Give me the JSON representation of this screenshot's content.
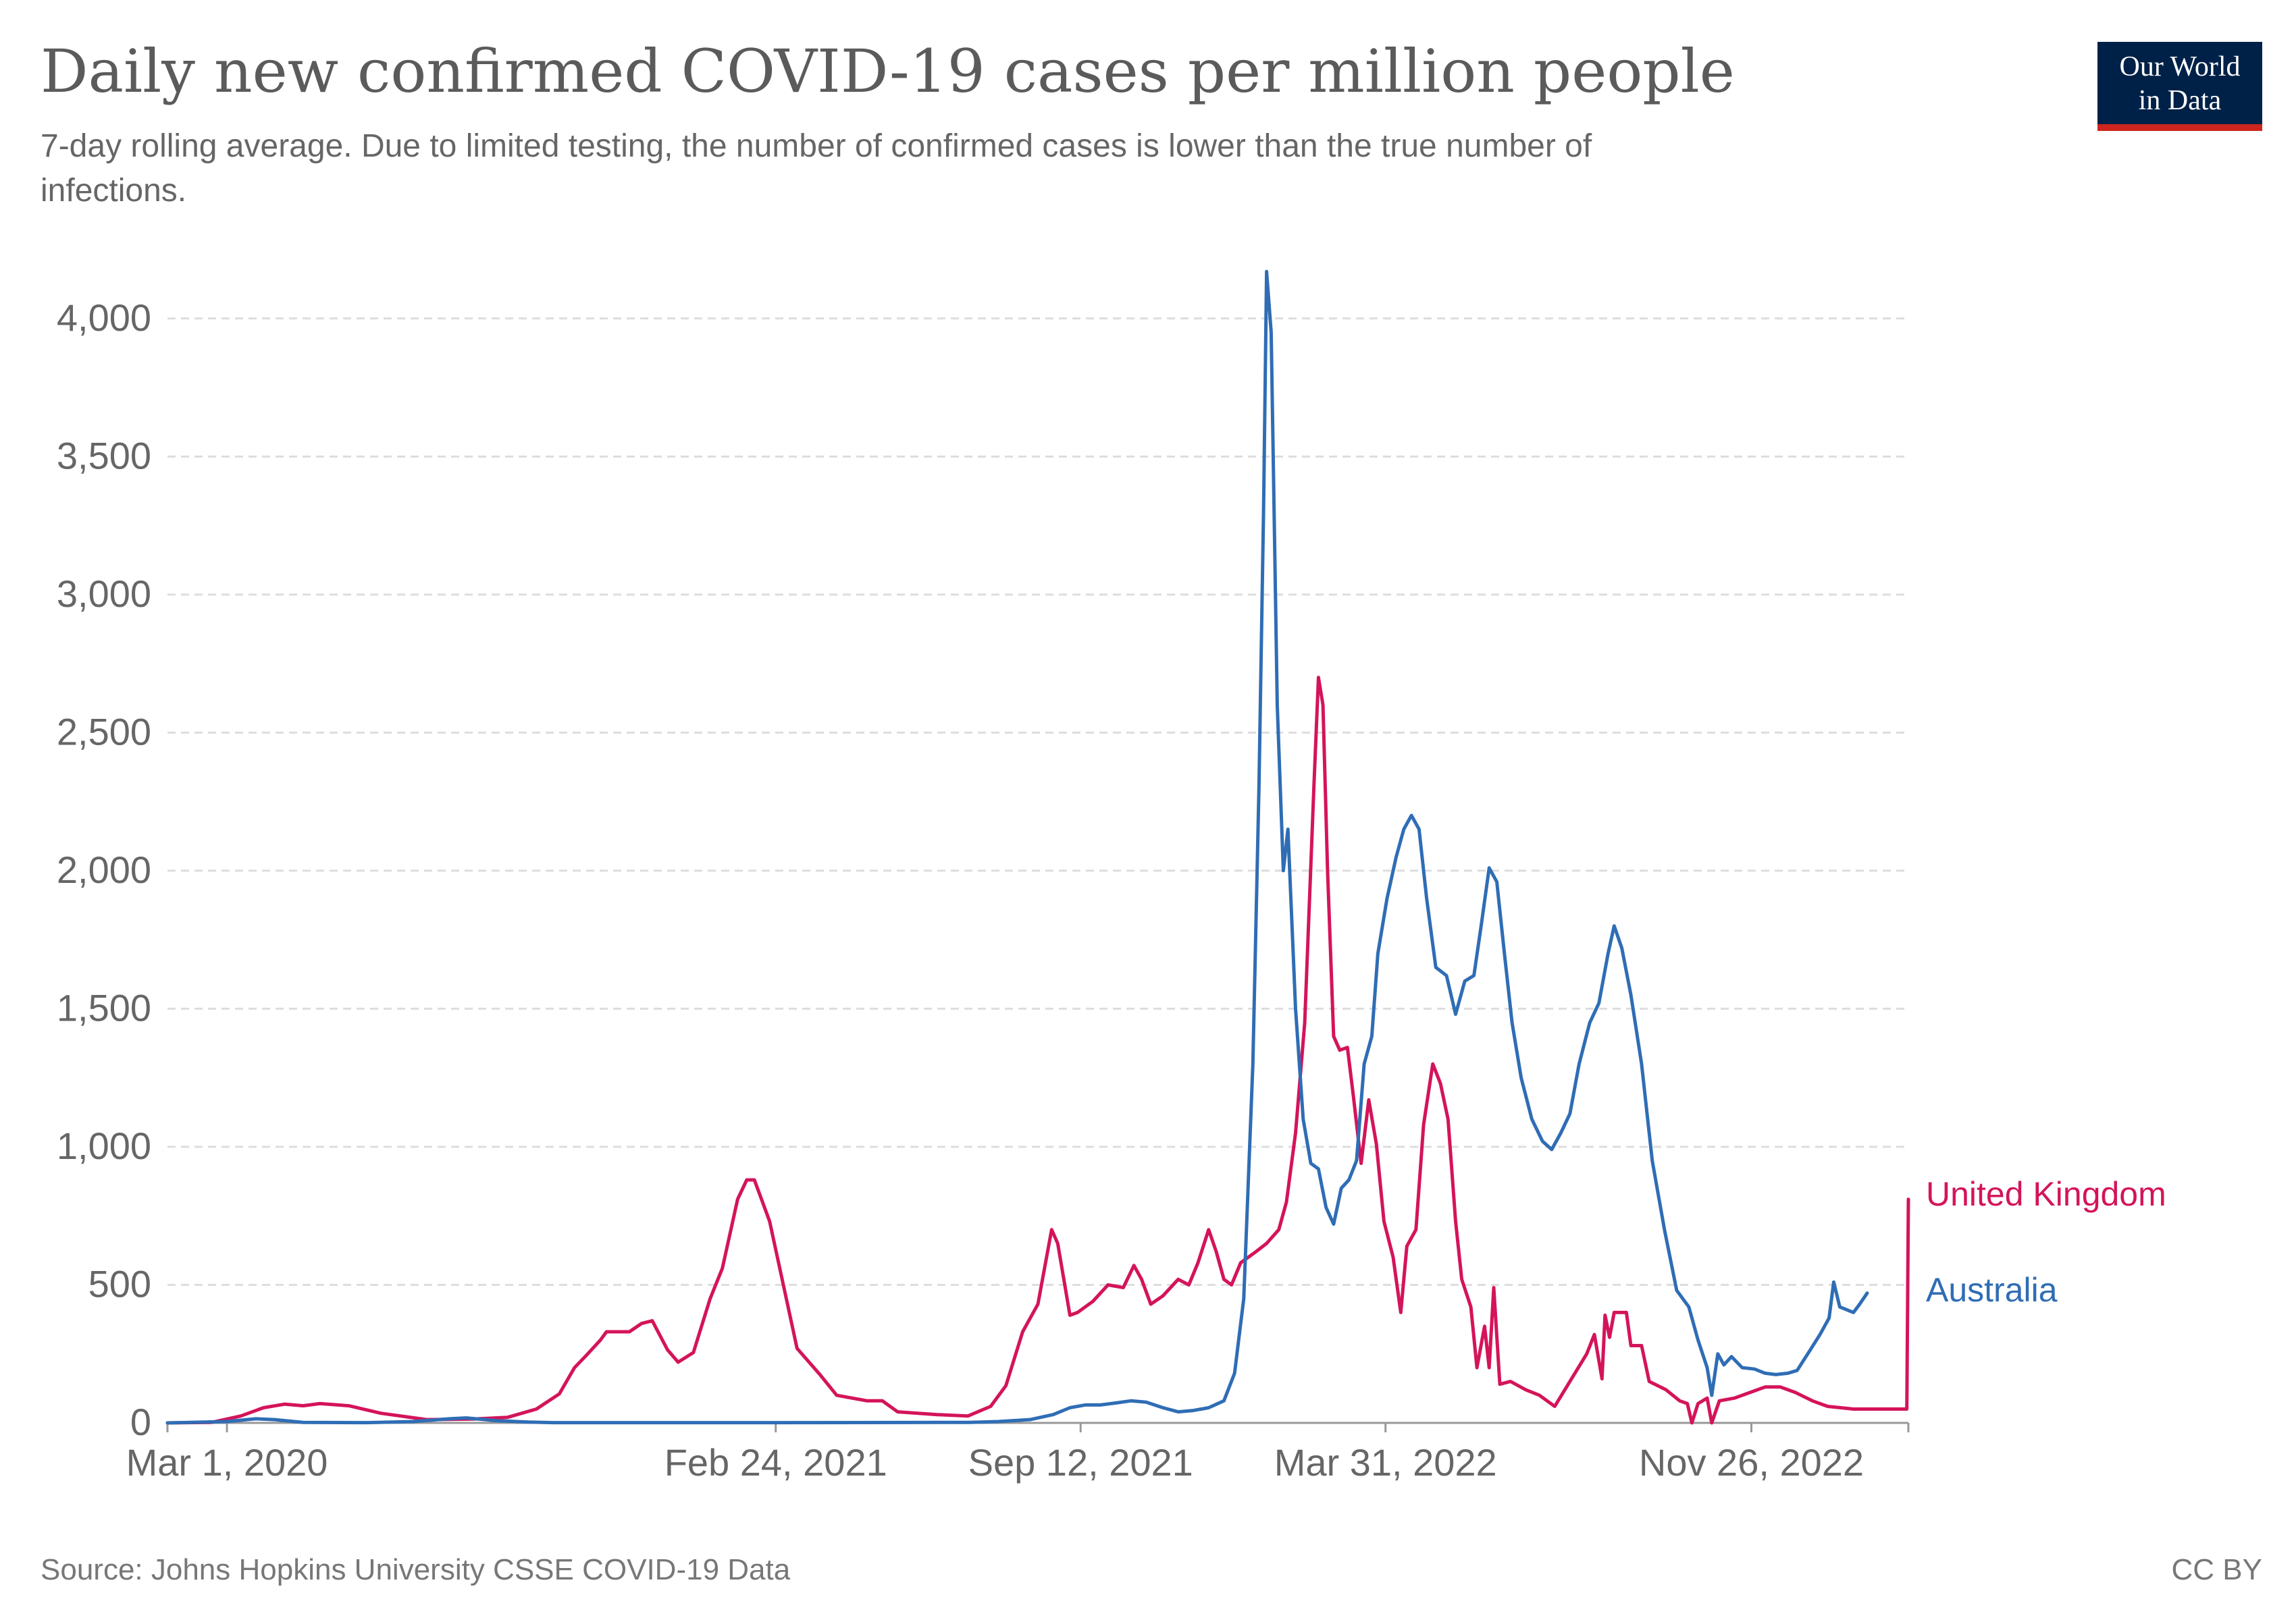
{
  "title": "Daily new confirmed COVID-19 cases per million people",
  "subtitle_line1": "7-day rolling average. Due to limited testing, the number of confirmed cases is lower than the true number of",
  "subtitle_line2": "infections.",
  "logo": {
    "line1": "Our World",
    "line2": "in Data",
    "bg_color": "#002147",
    "accent_color": "#ce261e"
  },
  "source": "Source: Johns Hopkins University CSSE COVID-19 Data",
  "license": "CC BY",
  "chart_data": {
    "type": "line",
    "title": "Daily new confirmed COVID-19 cases per million people",
    "xlabel": "",
    "ylabel": "",
    "x_start": "2020-01-22",
    "x_end": "2023-03-09",
    "ylim": [
      0,
      4200
    ],
    "y_ticks": [
      0,
      500,
      1000,
      1500,
      2000,
      2500,
      3000,
      3500,
      4000
    ],
    "y_tick_labels": [
      "0",
      "500",
      "1,000",
      "1,500",
      "2,000",
      "2,500",
      "3,000",
      "3,500",
      "4,000"
    ],
    "x_tick_dates": [
      "2020-03-01",
      "2021-02-24",
      "2021-09-12",
      "2022-03-31",
      "2022-11-26"
    ],
    "x_tick_labels": [
      "Mar 1, 2020",
      "Feb 24, 2021",
      "Sep 12, 2021",
      "Mar 31, 2022",
      "Nov 26, 2022"
    ],
    "grid": true,
    "legend": "end-of-line labels",
    "series": [
      {
        "name": "United Kingdom",
        "color": "#d4145a",
        "points": [
          [
            "2020-01-22",
            0
          ],
          [
            "2020-02-20",
            2
          ],
          [
            "2020-03-10",
            25
          ],
          [
            "2020-03-25",
            55
          ],
          [
            "2020-04-08",
            68
          ],
          [
            "2020-04-20",
            62
          ],
          [
            "2020-05-01",
            70
          ],
          [
            "2020-05-20",
            62
          ],
          [
            "2020-06-10",
            35
          ],
          [
            "2020-07-10",
            12
          ],
          [
            "2020-08-10",
            14
          ],
          [
            "2020-09-01",
            20
          ],
          [
            "2020-09-20",
            50
          ],
          [
            "2020-10-05",
            105
          ],
          [
            "2020-10-15",
            200
          ],
          [
            "2020-10-22",
            240
          ],
          [
            "2020-11-01",
            300
          ],
          [
            "2020-11-05",
            330
          ],
          [
            "2020-11-20",
            330
          ],
          [
            "2020-11-28",
            360
          ],
          [
            "2020-12-05",
            370
          ],
          [
            "2020-12-15",
            265
          ],
          [
            "2020-12-22",
            220
          ],
          [
            "2021-01-01",
            255
          ],
          [
            "2021-01-12",
            450
          ],
          [
            "2021-01-20",
            560
          ],
          [
            "2021-01-30",
            810
          ],
          [
            "2021-02-05",
            880
          ],
          [
            "2021-02-10",
            880
          ],
          [
            "2021-02-20",
            730
          ],
          [
            "2021-03-01",
            500
          ],
          [
            "2021-03-10",
            270
          ],
          [
            "2021-03-25",
            175
          ],
          [
            "2021-04-05",
            100
          ],
          [
            "2021-04-25",
            80
          ],
          [
            "2021-05-05",
            80
          ],
          [
            "2021-05-15",
            40
          ],
          [
            "2021-06-10",
            30
          ],
          [
            "2021-06-30",
            25
          ],
          [
            "2021-07-15",
            60
          ],
          [
            "2021-07-25",
            135
          ],
          [
            "2021-08-05",
            330
          ],
          [
            "2021-08-15",
            430
          ],
          [
            "2021-08-24",
            700
          ],
          [
            "2021-08-28",
            650
          ],
          [
            "2021-09-05",
            390
          ],
          [
            "2021-09-10",
            400
          ],
          [
            "2021-09-20",
            440
          ],
          [
            "2021-09-30",
            500
          ],
          [
            "2021-10-10",
            490
          ],
          [
            "2021-10-17",
            570
          ],
          [
            "2021-10-22",
            520
          ],
          [
            "2021-10-28",
            430
          ],
          [
            "2021-11-05",
            460
          ],
          [
            "2021-11-15",
            520
          ],
          [
            "2021-11-22",
            500
          ],
          [
            "2021-11-28",
            580
          ],
          [
            "2021-12-05",
            700
          ],
          [
            "2021-12-10",
            620
          ],
          [
            "2021-12-15",
            520
          ],
          [
            "2021-12-20",
            500
          ],
          [
            "2021-12-26",
            580
          ],
          [
            "2022-01-05",
            620
          ],
          [
            "2022-01-12",
            650
          ],
          [
            "2022-01-20",
            700
          ],
          [
            "2022-01-25",
            800
          ],
          [
            "2022-01-31",
            1050
          ],
          [
            "2022-02-06",
            1450
          ],
          [
            "2022-02-12",
            2300
          ],
          [
            "2022-02-15",
            2700
          ],
          [
            "2022-02-18",
            2600
          ],
          [
            "2022-02-21",
            2000
          ],
          [
            "2022-02-25",
            1400
          ],
          [
            "2022-03-01",
            1350
          ],
          [
            "2022-03-06",
            1360
          ],
          [
            "2022-03-10",
            1180
          ],
          [
            "2022-03-15",
            940
          ],
          [
            "2022-03-20",
            1170
          ],
          [
            "2022-03-25",
            1010
          ],
          [
            "2022-03-30",
            730
          ],
          [
            "2022-04-05",
            600
          ],
          [
            "2022-04-10",
            400
          ],
          [
            "2022-04-14",
            640
          ],
          [
            "2022-04-20",
            700
          ],
          [
            "2022-04-25",
            1080
          ],
          [
            "2022-05-01",
            1300
          ],
          [
            "2022-05-06",
            1230
          ],
          [
            "2022-05-11",
            1100
          ],
          [
            "2022-05-16",
            730
          ],
          [
            "2022-05-20",
            520
          ],
          [
            "2022-05-26",
            420
          ],
          [
            "2022-05-30",
            200
          ],
          [
            "2022-06-04",
            350
          ],
          [
            "2022-06-07",
            200
          ],
          [
            "2022-06-10",
            490
          ],
          [
            "2022-06-14",
            140
          ],
          [
            "2022-06-21",
            150
          ],
          [
            "2022-07-01",
            120
          ],
          [
            "2022-07-10",
            100
          ],
          [
            "2022-07-20",
            60
          ],
          [
            "2022-07-30",
            150
          ],
          [
            "2022-08-10",
            250
          ],
          [
            "2022-08-15",
            320
          ],
          [
            "2022-08-20",
            160
          ],
          [
            "2022-08-22",
            390
          ],
          [
            "2022-08-25",
            310
          ],
          [
            "2022-08-28",
            400
          ],
          [
            "2022-09-05",
            400
          ],
          [
            "2022-09-08",
            280
          ],
          [
            "2022-09-15",
            280
          ],
          [
            "2022-09-20",
            150
          ],
          [
            "2022-10-01",
            120
          ],
          [
            "2022-10-10",
            80
          ],
          [
            "2022-10-15",
            70
          ],
          [
            "2022-10-18",
            0
          ],
          [
            "2022-10-22",
            70
          ],
          [
            "2022-10-28",
            90
          ],
          [
            "2022-10-31",
            0
          ],
          [
            "2022-11-05",
            80
          ],
          [
            "2022-11-15",
            90
          ],
          [
            "2022-11-25",
            110
          ],
          [
            "2022-12-05",
            130
          ],
          [
            "2022-12-15",
            130
          ],
          [
            "2022-12-25",
            110
          ],
          [
            "2023-01-05",
            80
          ],
          [
            "2023-01-15",
            60
          ],
          [
            "2023-02-01",
            50
          ],
          [
            "2023-03-08",
            50
          ],
          [
            "2023-03-09",
            810
          ]
        ]
      },
      {
        "name": "Australia",
        "color": "#2f6db5",
        "points": [
          [
            "2020-01-22",
            0
          ],
          [
            "2020-03-01",
            5
          ],
          [
            "2020-03-20",
            15
          ],
          [
            "2020-04-01",
            12
          ],
          [
            "2020-04-20",
            2
          ],
          [
            "2020-06-01",
            1
          ],
          [
            "2020-07-01",
            5
          ],
          [
            "2020-07-25",
            15
          ],
          [
            "2020-08-05",
            18
          ],
          [
            "2020-08-25",
            8
          ],
          [
            "2020-09-15",
            3
          ],
          [
            "2020-10-01",
            1
          ],
          [
            "2021-03-01",
            1
          ],
          [
            "2021-07-01",
            2
          ],
          [
            "2021-07-20",
            5
          ],
          [
            "2021-08-10",
            12
          ],
          [
            "2021-08-25",
            30
          ],
          [
            "2021-09-05",
            55
          ],
          [
            "2021-09-15",
            65
          ],
          [
            "2021-09-25",
            65
          ],
          [
            "2021-10-05",
            72
          ],
          [
            "2021-10-15",
            80
          ],
          [
            "2021-10-25",
            75
          ],
          [
            "2021-11-05",
            55
          ],
          [
            "2021-11-15",
            40
          ],
          [
            "2021-11-25",
            45
          ],
          [
            "2021-12-05",
            55
          ],
          [
            "2021-12-15",
            80
          ],
          [
            "2021-12-22",
            180
          ],
          [
            "2021-12-28",
            450
          ],
          [
            "2022-01-03",
            1300
          ],
          [
            "2022-01-07",
            2300
          ],
          [
            "2022-01-10",
            3300
          ],
          [
            "2022-01-12",
            4170
          ],
          [
            "2022-01-15",
            3950
          ],
          [
            "2022-01-19",
            2600
          ],
          [
            "2022-01-23",
            2000
          ],
          [
            "2022-01-26",
            2150
          ],
          [
            "2022-01-31",
            1500
          ],
          [
            "2022-02-05",
            1100
          ],
          [
            "2022-02-10",
            940
          ],
          [
            "2022-02-15",
            920
          ],
          [
            "2022-02-20",
            780
          ],
          [
            "2022-02-25",
            720
          ],
          [
            "2022-03-02",
            850
          ],
          [
            "2022-03-07",
            880
          ],
          [
            "2022-03-12",
            950
          ],
          [
            "2022-03-17",
            1300
          ],
          [
            "2022-03-22",
            1400
          ],
          [
            "2022-03-26",
            1700
          ],
          [
            "2022-04-01",
            1900
          ],
          [
            "2022-04-07",
            2050
          ],
          [
            "2022-04-12",
            2150
          ],
          [
            "2022-04-17",
            2200
          ],
          [
            "2022-04-22",
            2150
          ],
          [
            "2022-04-27",
            1900
          ],
          [
            "2022-05-03",
            1650
          ],
          [
            "2022-05-10",
            1620
          ],
          [
            "2022-05-16",
            1480
          ],
          [
            "2022-05-22",
            1600
          ],
          [
            "2022-05-28",
            1620
          ],
          [
            "2022-06-02",
            1810
          ],
          [
            "2022-06-07",
            2010
          ],
          [
            "2022-06-12",
            1960
          ],
          [
            "2022-06-17",
            1700
          ],
          [
            "2022-06-22",
            1450
          ],
          [
            "2022-06-28",
            1250
          ],
          [
            "2022-07-05",
            1100
          ],
          [
            "2022-07-12",
            1020
          ],
          [
            "2022-07-18",
            990
          ],
          [
            "2022-07-24",
            1050
          ],
          [
            "2022-07-30",
            1120
          ],
          [
            "2022-08-05",
            1300
          ],
          [
            "2022-08-12",
            1450
          ],
          [
            "2022-08-18",
            1520
          ],
          [
            "2022-08-24",
            1700
          ],
          [
            "2022-08-28",
            1800
          ],
          [
            "2022-09-02",
            1720
          ],
          [
            "2022-09-08",
            1550
          ],
          [
            "2022-09-15",
            1300
          ],
          [
            "2022-09-22",
            950
          ],
          [
            "2022-09-30",
            700
          ],
          [
            "2022-10-08",
            480
          ],
          [
            "2022-10-16",
            420
          ],
          [
            "2022-10-22",
            300
          ],
          [
            "2022-10-28",
            200
          ],
          [
            "2022-10-31",
            100
          ],
          [
            "2022-11-04",
            250
          ],
          [
            "2022-11-08",
            210
          ],
          [
            "2022-11-13",
            240
          ],
          [
            "2022-11-20",
            200
          ],
          [
            "2022-11-28",
            195
          ],
          [
            "2022-12-05",
            180
          ],
          [
            "2022-12-12",
            175
          ],
          [
            "2022-12-20",
            180
          ],
          [
            "2022-12-26",
            190
          ],
          [
            "2023-01-02",
            250
          ],
          [
            "2023-01-10",
            320
          ],
          [
            "2023-01-16",
            380
          ],
          [
            "2023-01-19",
            510
          ],
          [
            "2023-01-23",
            420
          ],
          [
            "2023-02-01",
            400
          ],
          [
            "2023-02-05",
            430
          ],
          [
            "2023-02-10",
            470
          ]
        ]
      }
    ]
  }
}
